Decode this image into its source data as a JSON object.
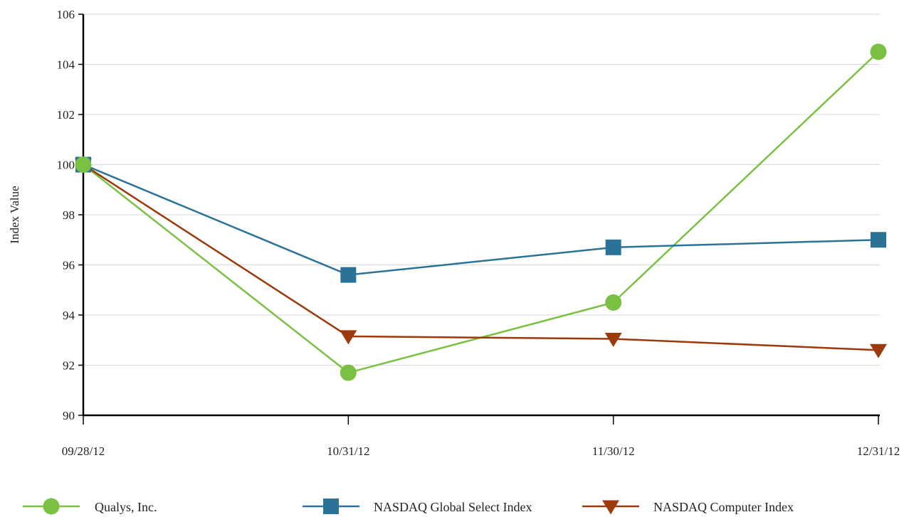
{
  "chart_data": {
    "type": "line",
    "title": "",
    "xlabel": "",
    "ylabel": "Index Value",
    "categories": [
      "09/28/12",
      "10/31/12",
      "11/30/12",
      "12/31/12"
    ],
    "ylim": [
      90,
      106
    ],
    "yticks": [
      90,
      92,
      94,
      96,
      98,
      100,
      102,
      104,
      106
    ],
    "grid": true,
    "legend_position": "bottom",
    "series": [
      {
        "name": "Qualys, Inc.",
        "values": [
          100,
          91.7,
          94.5,
          104.5
        ],
        "color": "#7ac143",
        "marker": "circle"
      },
      {
        "name": "NASDAQ Global Select Index",
        "values": [
          100,
          95.6,
          96.7,
          97.0
        ],
        "color": "#2a7396",
        "marker": "square"
      },
      {
        "name": "NASDAQ Computer Index",
        "values": [
          100,
          93.15,
          93.05,
          92.6
        ],
        "color": "#9b3a0c",
        "marker": "triangle-down"
      }
    ]
  }
}
